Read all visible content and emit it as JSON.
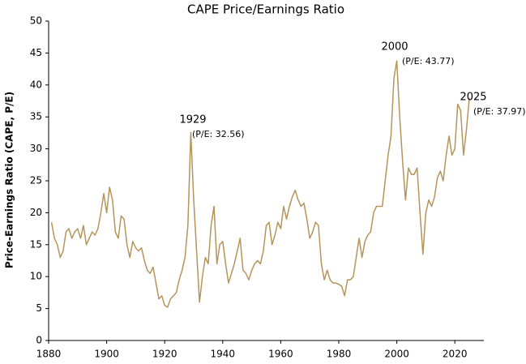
{
  "chart_data": {
    "type": "line",
    "title": "CAPE Price/Earnings Ratio",
    "y_label": "Price-Earnings Ratio (CAPE, P/E)",
    "x": [
      1881,
      1882,
      1883,
      1884,
      1885,
      1886,
      1887,
      1888,
      1889,
      1890,
      1891,
      1892,
      1893,
      1894,
      1895,
      1896,
      1897,
      1898,
      1899,
      1900,
      1901,
      1902,
      1903,
      1904,
      1905,
      1906,
      1907,
      1908,
      1909,
      1910,
      1911,
      1912,
      1913,
      1914,
      1915,
      1916,
      1917,
      1918,
      1919,
      1920,
      1921,
      1922,
      1923,
      1924,
      1925,
      1926,
      1927,
      1928,
      1929,
      1930,
      1931,
      1932,
      1933,
      1934,
      1935,
      1936,
      1937,
      1938,
      1939,
      1940,
      1941,
      1942,
      1943,
      1944,
      1945,
      1946,
      1947,
      1948,
      1949,
      1950,
      1951,
      1952,
      1953,
      1954,
      1955,
      1956,
      1957,
      1958,
      1959,
      1960,
      1961,
      1962,
      1963,
      1964,
      1965,
      1966,
      1967,
      1968,
      1969,
      1970,
      1971,
      1972,
      1973,
      1974,
      1975,
      1976,
      1977,
      1978,
      1979,
      1980,
      1981,
      1982,
      1983,
      1984,
      1985,
      1986,
      1987,
      1988,
      1989,
      1990,
      1991,
      1992,
      1993,
      1994,
      1995,
      1996,
      1997,
      1998,
      1999,
      2000,
      2001,
      2002,
      2003,
      2004,
      2005,
      2006,
      2007,
      2008,
      2009,
      2010,
      2011,
      2012,
      2013,
      2014,
      2015,
      2016,
      2017,
      2018,
      2019,
      2020,
      2021,
      2022,
      2023,
      2024,
      2025
    ],
    "series": [
      {
        "name": "CAPE",
        "color": "#b5955a",
        "values": [
          18.5,
          16,
          15,
          13,
          14,
          17,
          17.5,
          16,
          17,
          17.5,
          16,
          18,
          15,
          16,
          17,
          16.5,
          17.5,
          20,
          23,
          20,
          24,
          22,
          17,
          16,
          19.5,
          19,
          15,
          13,
          15.5,
          14.5,
          14,
          14.5,
          12.5,
          11,
          10.5,
          11.5,
          9,
          6.5,
          7,
          5.5,
          5.2,
          6.5,
          7,
          7.5,
          9.5,
          11,
          13,
          18,
          32.56,
          22,
          14,
          6,
          10,
          13,
          12,
          18,
          21,
          12,
          15,
          15.5,
          12,
          9,
          10.5,
          12,
          14,
          16,
          11,
          10.5,
          9.5,
          11,
          12,
          12.5,
          12,
          14,
          18,
          18.5,
          15,
          16.5,
          18.5,
          17.5,
          21,
          19,
          21,
          22.5,
          23.5,
          22,
          21,
          21.5,
          19,
          16,
          17,
          18.5,
          18,
          12,
          9.5,
          11,
          9.5,
          9,
          9,
          8.8,
          8.5,
          7,
          9.5,
          9.5,
          10,
          13,
          16,
          13,
          15.5,
          16.5,
          17,
          20,
          21,
          21,
          21,
          25,
          29,
          32,
          41,
          43.77,
          35,
          28,
          22,
          27,
          26,
          26,
          27,
          20,
          13.5,
          20,
          22,
          21,
          22.5,
          25.5,
          26.5,
          25,
          29,
          32,
          29,
          30,
          37,
          36,
          29,
          33,
          37.97
        ]
      }
    ],
    "xlim": [
      1880,
      2030
    ],
    "xticks": [
      1880,
      1900,
      1920,
      1940,
      1960,
      1980,
      2000,
      2020
    ],
    "ylim": [
      0,
      50
    ],
    "yticks": [
      0,
      5,
      10,
      15,
      20,
      25,
      30,
      35,
      40,
      45,
      50
    ],
    "grid": false,
    "annotations": [
      {
        "label": "1929",
        "text": "(P/E: 32.56)"
      },
      {
        "label": "2000",
        "text": "(P/E: 43.77)"
      },
      {
        "label": "2025",
        "text": "(P/E: 37.97)"
      }
    ]
  }
}
